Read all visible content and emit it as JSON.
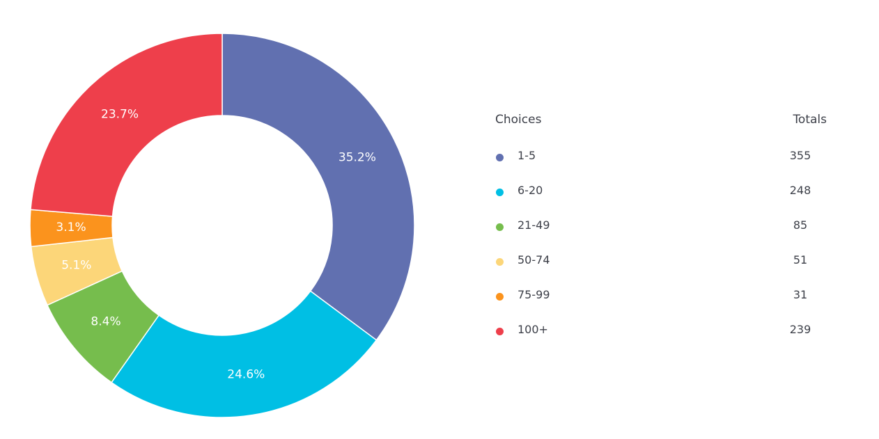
{
  "chart_data": {
    "type": "pie",
    "style": "donut",
    "series": [
      {
        "label": "1-5",
        "value": 355,
        "percent_label": "35.2%",
        "color": "#6170b0"
      },
      {
        "label": "6-20",
        "value": 248,
        "percent_label": "24.6%",
        "color": "#00bfe4"
      },
      {
        "label": "21-49",
        "value": 85,
        "percent_label": "8.4%",
        "color": "#76bd4d"
      },
      {
        "label": "50-74",
        "value": 51,
        "percent_label": "5.1%",
        "color": "#fcd679"
      },
      {
        "label": "75-99",
        "value": 31,
        "percent_label": "3.1%",
        "color": "#fb931d"
      },
      {
        "label": "100+",
        "value": 239,
        "percent_label": "23.7%",
        "color": "#ee3f4b"
      }
    ],
    "legend_placement": "right"
  },
  "legend": {
    "choices_header": "Choices",
    "totals_header": "Totals"
  }
}
